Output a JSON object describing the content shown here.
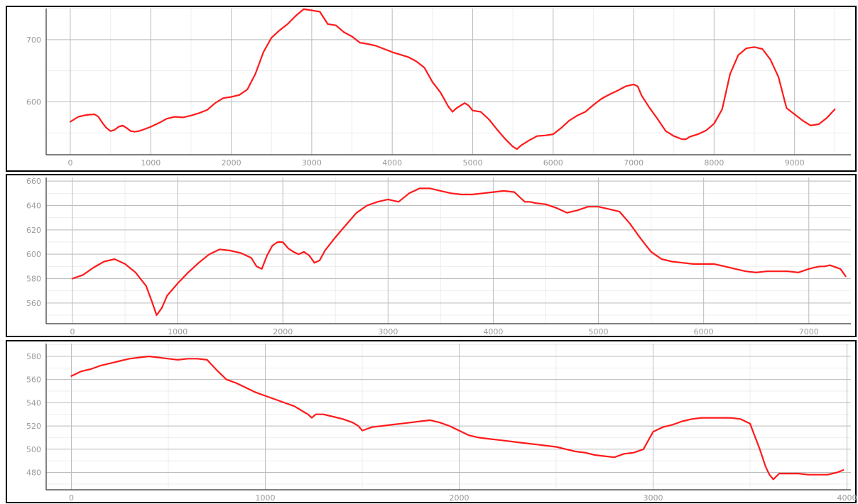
{
  "colors": {
    "series": "#ff1a1a",
    "grid": "#d0d0d0",
    "tick_text": "#999999",
    "frame": "#000000"
  },
  "chart_data": [
    {
      "type": "line",
      "title": "",
      "xlabel": "",
      "ylabel": "",
      "xlim": [
        -300,
        9700
      ],
      "ylim": [
        515,
        750
      ],
      "xticks": [
        0,
        1000,
        2000,
        3000,
        4000,
        5000,
        6000,
        7000,
        8000,
        9000
      ],
      "yticks": [
        600,
        700
      ],
      "grid": true,
      "legend": "none",
      "series": [
        {
          "x": [
            0,
            100,
            200,
            300,
            350,
            400,
            450,
            500,
            550,
            600,
            650,
            700,
            750,
            800,
            850,
            900,
            1000,
            1100,
            1200,
            1300,
            1400,
            1500,
            1600,
            1700,
            1800,
            1900,
            2000,
            2100,
            2200,
            2300,
            2400,
            2500,
            2600,
            2700,
            2800,
            2900,
            3000,
            3100,
            3200,
            3300,
            3400,
            3500,
            3600,
            3700,
            3800,
            3900,
            4000,
            4100,
            4200,
            4300,
            4400,
            4500,
            4600,
            4700,
            4750,
            4800,
            4900,
            4950,
            5000,
            5100,
            5200,
            5300,
            5400,
            5500,
            5550,
            5600,
            5700,
            5800,
            5900,
            6000,
            6100,
            6200,
            6300,
            6400,
            6500,
            6600,
            6700,
            6800,
            6900,
            7000,
            7050,
            7100,
            7200,
            7300,
            7400,
            7500,
            7600,
            7650,
            7700,
            7800,
            7900,
            8000,
            8100,
            8200,
            8300,
            8400,
            8500,
            8600,
            8700,
            8800,
            8900,
            9000,
            9100,
            9200,
            9300,
            9400,
            9500
          ],
          "y": [
            568,
            576,
            579,
            580,
            576,
            566,
            558,
            553,
            555,
            560,
            562,
            558,
            553,
            552,
            553,
            555,
            560,
            566,
            573,
            576,
            575,
            578,
            582,
            587,
            598,
            606,
            608,
            611,
            620,
            645,
            680,
            703,
            715,
            725,
            738,
            749,
            747,
            745,
            725,
            723,
            712,
            705,
            695,
            693,
            690,
            685,
            680,
            676,
            672,
            665,
            655,
            632,
            615,
            592,
            584,
            590,
            598,
            594,
            586,
            584,
            572,
            556,
            541,
            528,
            524,
            530,
            538,
            545,
            546,
            548,
            558,
            570,
            578,
            584,
            595,
            605,
            612,
            618,
            625,
            628,
            625,
            610,
            590,
            572,
            553,
            545,
            540,
            540,
            544,
            548,
            554,
            565,
            588,
            645,
            675,
            686,
            688,
            685,
            668,
            640,
            590,
            580,
            570,
            562,
            564,
            574,
            588
          ]
        }
      ]
    },
    {
      "type": "line",
      "title": "",
      "xlabel": "",
      "ylabel": "",
      "xlim": [
        -250,
        7400
      ],
      "ylim": [
        543,
        663
      ],
      "xticks": [
        0,
        1000,
        2000,
        3000,
        4000,
        5000,
        6000,
        7000
      ],
      "yticks": [
        560,
        580,
        600,
        620,
        640,
        660
      ],
      "grid": true,
      "legend": "none",
      "series": [
        {
          "x": [
            0,
            100,
            200,
            300,
            400,
            500,
            600,
            700,
            760,
            800,
            850,
            900,
            1000,
            1100,
            1200,
            1300,
            1400,
            1500,
            1600,
            1700,
            1750,
            1800,
            1850,
            1900,
            1950,
            2000,
            2050,
            2100,
            2150,
            2200,
            2250,
            2300,
            2350,
            2400,
            2500,
            2600,
            2700,
            2800,
            2900,
            3000,
            3100,
            3200,
            3300,
            3400,
            3500,
            3600,
            3700,
            3800,
            3900,
            4000,
            4100,
            4200,
            4250,
            4300,
            4350,
            4400,
            4500,
            4600,
            4700,
            4800,
            4900,
            5000,
            5100,
            5200,
            5300,
            5400,
            5500,
            5600,
            5700,
            5800,
            5900,
            6000,
            6100,
            6200,
            6300,
            6400,
            6500,
            6600,
            6700,
            6800,
            6900,
            7000,
            7100,
            7150,
            7200,
            7300,
            7350
          ],
          "y": [
            580,
            583,
            589,
            594,
            596,
            592,
            585,
            574,
            560,
            550,
            556,
            566,
            576,
            585,
            593,
            600,
            604,
            603,
            601,
            597,
            590,
            588,
            599,
            607,
            610,
            610,
            605,
            602,
            600,
            602,
            599,
            593,
            595,
            603,
            614,
            624,
            634,
            640,
            643,
            645,
            643,
            650,
            654,
            654,
            652,
            650,
            649,
            649,
            650,
            651,
            652,
            651,
            647,
            643,
            643,
            642,
            641,
            638,
            634,
            636,
            639,
            639,
            637,
            635,
            625,
            613,
            602,
            596,
            594,
            593,
            592,
            592,
            592,
            590,
            588,
            586,
            585,
            586,
            586,
            586,
            585,
            588,
            590,
            590,
            591,
            588,
            582
          ]
        }
      ]
    },
    {
      "type": "line",
      "title": "",
      "xlabel": "",
      "ylabel": "",
      "xlim": [
        -130,
        4020
      ],
      "ylim": [
        465,
        591
      ],
      "xticks": [
        0,
        1000,
        2000,
        3000,
        4000
      ],
      "yticks": [
        480,
        500,
        520,
        540,
        560,
        580
      ],
      "grid": true,
      "legend": "none",
      "series": [
        {
          "x": [
            0,
            50,
            100,
            150,
            200,
            250,
            300,
            350,
            400,
            450,
            500,
            550,
            600,
            650,
            700,
            750,
            800,
            850,
            900,
            950,
            1000,
            1050,
            1100,
            1150,
            1200,
            1220,
            1240,
            1260,
            1300,
            1350,
            1400,
            1450,
            1480,
            1500,
            1550,
            1600,
            1650,
            1700,
            1750,
            1800,
            1850,
            1900,
            1950,
            2000,
            2050,
            2100,
            2150,
            2200,
            2250,
            2300,
            2350,
            2400,
            2450,
            2500,
            2550,
            2600,
            2650,
            2700,
            2750,
            2800,
            2850,
            2900,
            2950,
            3000,
            3050,
            3100,
            3150,
            3200,
            3250,
            3300,
            3350,
            3400,
            3450,
            3500,
            3550,
            3580,
            3600,
            3620,
            3650,
            3700,
            3750,
            3800,
            3850,
            3900,
            3950,
            3980
          ],
          "y": [
            563,
            567,
            569,
            572,
            574,
            576,
            578,
            579,
            580,
            579,
            578,
            577,
            578,
            578,
            577,
            568,
            560,
            557,
            553,
            549,
            546,
            543,
            540,
            537,
            532,
            530,
            527,
            530,
            530,
            528,
            526,
            523,
            520,
            516,
            519,
            520,
            521,
            522,
            523,
            524,
            525,
            523,
            520,
            516,
            512,
            510,
            509,
            508,
            507,
            506,
            505,
            504,
            503,
            502,
            500,
            498,
            497,
            495,
            494,
            493,
            496,
            497,
            500,
            515,
            519,
            521,
            524,
            526,
            527,
            527,
            527,
            527,
            526,
            522,
            500,
            485,
            478,
            474,
            479,
            479,
            479,
            478,
            478,
            478,
            480,
            482
          ]
        }
      ]
    }
  ]
}
